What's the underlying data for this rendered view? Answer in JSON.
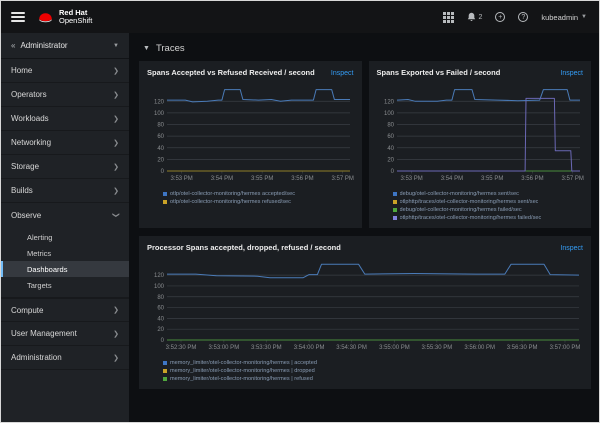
{
  "masthead": {
    "brand_line1": "Red Hat",
    "brand_line2": "OpenShift",
    "notification_count": "2",
    "username": "kubeadmin"
  },
  "sidebar": {
    "perspective": "Administrator",
    "items": [
      {
        "label": "Home"
      },
      {
        "label": "Operators"
      },
      {
        "label": "Workloads"
      },
      {
        "label": "Networking"
      },
      {
        "label": "Storage"
      },
      {
        "label": "Builds"
      },
      {
        "label": "Observe",
        "children": [
          {
            "label": "Alerting"
          },
          {
            "label": "Metrics"
          },
          {
            "label": "Dashboards",
            "active": true
          },
          {
            "label": "Targets"
          }
        ]
      },
      {
        "label": "Compute"
      },
      {
        "label": "User Management"
      },
      {
        "label": "Administration"
      }
    ]
  },
  "main": {
    "section_title": "Traces",
    "inspect_label": "Inspect"
  },
  "colors": {
    "accent_blue": "#349cf4",
    "active_nav_border": "#73bcf7",
    "grid_line": "#3a3e44",
    "axis_text": "#8a8d90"
  },
  "chart_data": [
    {
      "type": "line",
      "title": "Spans Accepted vs Refused Received / second",
      "ylabel": "",
      "xlabel": "",
      "ylim": [
        0,
        148
      ],
      "yticks": [
        0,
        20,
        40,
        60,
        80,
        100,
        120
      ],
      "grid": true,
      "legend_position": "bottom",
      "xticks": [
        {
          "t": 0.08,
          "label": "3:53 PM"
        },
        {
          "t": 0.3,
          "label": "3:54 PM"
        },
        {
          "t": 0.52,
          "label": "3:55 PM"
        },
        {
          "t": 0.74,
          "label": "3:56 PM"
        },
        {
          "t": 0.96,
          "label": "3:57 PM"
        }
      ],
      "series": [
        {
          "name": "otlp/otel-collector-monitoring/hermes accepted/sec",
          "color": "#4a7bb8",
          "swatch": "#3e76c4",
          "points": [
            [
              0,
              122
            ],
            [
              0.1,
              122
            ],
            [
              0.14,
              119
            ],
            [
              0.22,
              120
            ],
            [
              0.28,
              122
            ],
            [
              0.3,
              122
            ],
            [
              0.315,
              140
            ],
            [
              0.4,
              140
            ],
            [
              0.415,
              123
            ],
            [
              0.5,
              122
            ],
            [
              0.57,
              123
            ],
            [
              0.62,
              120
            ],
            [
              0.68,
              122
            ],
            [
              0.8,
              122
            ],
            [
              0.815,
              140
            ],
            [
              0.9,
              140
            ],
            [
              0.915,
              123
            ],
            [
              1,
              123
            ]
          ]
        },
        {
          "name": "otlp/otel-collector-monitoring/hermes refused/sec",
          "color": "#8f7f28",
          "swatch": "#c9a227",
          "points": [
            [
              0,
              0
            ],
            [
              1,
              0
            ]
          ]
        }
      ]
    },
    {
      "type": "line",
      "title": "Spans Exported vs Failed / second",
      "ylabel": "",
      "xlabel": "",
      "ylim": [
        0,
        148
      ],
      "yticks": [
        0,
        20,
        40,
        60,
        80,
        100,
        120
      ],
      "grid": true,
      "legend_position": "bottom",
      "xticks": [
        {
          "t": 0.08,
          "label": "3:53 PM"
        },
        {
          "t": 0.3,
          "label": "3:54 PM"
        },
        {
          "t": 0.52,
          "label": "3:55 PM"
        },
        {
          "t": 0.74,
          "label": "3:56 PM"
        },
        {
          "t": 0.96,
          "label": "3:57 PM"
        }
      ],
      "series": [
        {
          "name": "debug/otel-collector-monitoring/hermes sent/sec",
          "color": "#4a7bb8",
          "swatch": "#3e76c4",
          "points": [
            [
              0,
              122
            ],
            [
              0.06,
              123
            ],
            [
              0.1,
              120
            ],
            [
              0.22,
              120
            ],
            [
              0.27,
              122
            ],
            [
              0.3,
              122
            ],
            [
              0.315,
              140
            ],
            [
              0.41,
              140
            ],
            [
              0.425,
              123
            ],
            [
              0.55,
              122
            ],
            [
              0.66,
              121
            ],
            [
              0.78,
              122
            ],
            [
              0.8,
              140
            ],
            [
              0.93,
              140
            ],
            [
              0.945,
              122
            ],
            [
              1,
              122
            ]
          ]
        },
        {
          "name": "otlphttp/traces/otel-collector-monitoring/hermes sent/sec",
          "color": "#8f7f28",
          "swatch": "#c9a227",
          "points": [
            [
              0,
              0
            ],
            [
              1,
              0
            ]
          ]
        },
        {
          "name": "debug/otel-collector-monitoring/hermes failed/sec",
          "color": "#4a8c3c",
          "swatch": "#50a83e",
          "points": [
            [
              0,
              0
            ],
            [
              1,
              0
            ]
          ]
        },
        {
          "name": "otlphttp/traces/otel-collector-monitoring/hermes failed/sec",
          "color": "#6b68b5",
          "swatch": "#8481dd",
          "points": [
            [
              0,
              0
            ],
            [
              0.7,
              0
            ],
            [
              0.705,
              125
            ],
            [
              0.86,
              125
            ],
            [
              0.865,
              35
            ],
            [
              0.95,
              35
            ],
            [
              0.955,
              0
            ],
            [
              1,
              0
            ]
          ]
        }
      ]
    },
    {
      "type": "line",
      "title": "Processor Spans accepted, dropped, refused / second",
      "ylabel": "",
      "xlabel": "",
      "ylim": [
        0,
        148
      ],
      "yticks": [
        0,
        20,
        40,
        60,
        80,
        100,
        120
      ],
      "grid": true,
      "legend_position": "bottom",
      "xticks": [
        {
          "t": 0.034,
          "label": "3:52:30 PM"
        },
        {
          "t": 0.138,
          "label": "3:53:00 PM"
        },
        {
          "t": 0.241,
          "label": "3:53:30 PM"
        },
        {
          "t": 0.345,
          "label": "3:54:00 PM"
        },
        {
          "t": 0.448,
          "label": "3:54:30 PM"
        },
        {
          "t": 0.552,
          "label": "3:55:00 PM"
        },
        {
          "t": 0.655,
          "label": "3:55:30 PM"
        },
        {
          "t": 0.759,
          "label": "3:56:00 PM"
        },
        {
          "t": 0.862,
          "label": "3:56:30 PM"
        },
        {
          "t": 0.966,
          "label": "3:57:00 PM"
        }
      ],
      "series": [
        {
          "name": "memory_limiter/otel-collector-monitoring/hermes | accepted",
          "color": "#4a7bb8",
          "swatch": "#3e76c4",
          "points": [
            [
              0,
              122
            ],
            [
              0.07,
              122
            ],
            [
              0.12,
              119
            ],
            [
              0.22,
              118
            ],
            [
              0.25,
              115
            ],
            [
              0.33,
              115
            ],
            [
              0.345,
              121
            ],
            [
              0.365,
              121
            ],
            [
              0.375,
              140
            ],
            [
              0.465,
              140
            ],
            [
              0.48,
              122
            ],
            [
              0.6,
              123
            ],
            [
              0.75,
              122
            ],
            [
              0.82,
              122
            ],
            [
              0.835,
              140
            ],
            [
              0.915,
              140
            ],
            [
              0.93,
              121
            ],
            [
              1,
              120
            ]
          ]
        },
        {
          "name": "memory_limiter/otel-collector-monitoring/hermes | dropped",
          "color": "#8f7f28",
          "swatch": "#c9a227",
          "points": [
            [
              0,
              0
            ],
            [
              1,
              0
            ]
          ]
        },
        {
          "name": "memory_limiter/otel-collector-monitoring/hermes | refused",
          "color": "#4a8c3c",
          "swatch": "#50a83e",
          "points": [
            [
              0,
              0
            ],
            [
              1,
              0
            ]
          ]
        }
      ]
    }
  ]
}
